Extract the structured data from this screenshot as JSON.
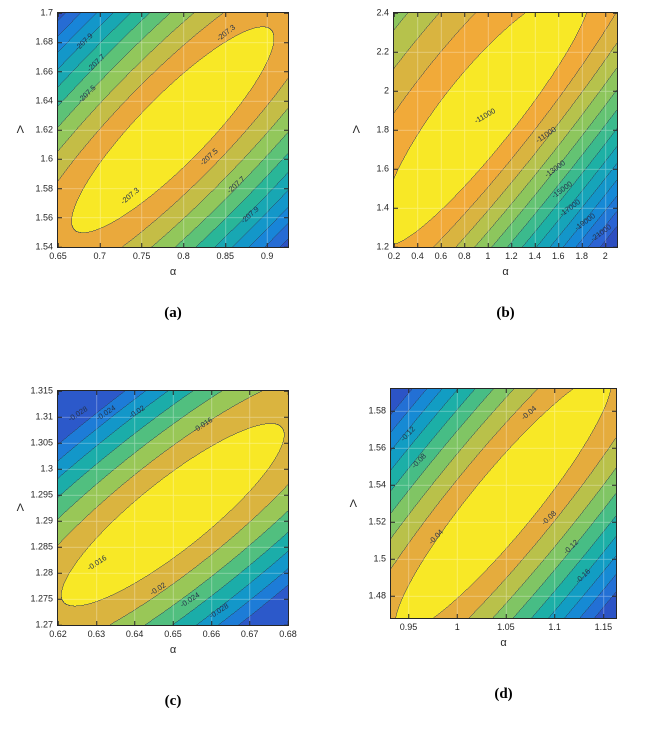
{
  "page": {
    "background": "#ffffff"
  },
  "colors": {
    "contour_line": "#2d3a54",
    "axis": "#262626",
    "colormap_low": "#2e3fb3",
    "colormap_high": "#f8e826"
  },
  "chart_data": [
    {
      "id": "a",
      "type": "contour",
      "caption": "(a)",
      "xlabel": "α",
      "ylabel": "Λ",
      "xlim": [
        0.65,
        0.925
      ],
      "ylim": [
        1.54,
        1.7
      ],
      "xticks": [
        0.65,
        0.7,
        0.75,
        0.8,
        0.85,
        0.9
      ],
      "yticks": [
        1.54,
        1.56,
        1.58,
        1.6,
        1.62,
        1.64,
        1.66,
        1.68,
        1.7
      ],
      "grid": true,
      "labeled_levels": [
        -207.3,
        -207.5,
        -207.7,
        -207.9
      ],
      "level_step": 0.2,
      "peak_region": "diagonal ellipse, max near -207.3 inside",
      "annotations": [
        {
          "text": "-207.3",
          "x": 0.73,
          "y": 0.085,
          "rot": -38
        },
        {
          "text": "-207.9",
          "x": 0.115,
          "y": 0.125,
          "rot": -44
        },
        {
          "text": "-207.7",
          "x": 0.165,
          "y": 0.215,
          "rot": -44
        },
        {
          "text": "-207.5",
          "x": 0.125,
          "y": 0.345,
          "rot": -44
        },
        {
          "text": "-207.3",
          "x": 0.315,
          "y": 0.78,
          "rot": -40
        },
        {
          "text": "-207.5",
          "x": 0.655,
          "y": 0.615,
          "rot": -42
        },
        {
          "text": "-207.7",
          "x": 0.775,
          "y": 0.735,
          "rot": -42
        },
        {
          "text": "-207.9",
          "x": 0.835,
          "y": 0.865,
          "rot": -42
        }
      ],
      "surface": {
        "angle_deg": 45,
        "cx": 0.5,
        "cy": 0.5,
        "ax": 1.15,
        "b_up": 0.28,
        "b_down": 0.28,
        "gmax": 2.6,
        "levels": 11,
        "power": 1.5
      }
    },
    {
      "id": "b",
      "type": "contour",
      "caption": "(b)",
      "xlabel": "α",
      "ylabel": "Λ",
      "xlim": [
        0.2,
        2.1
      ],
      "ylim": [
        1.2,
        2.4
      ],
      "xticks": [
        0.2,
        0.4,
        0.6,
        0.8,
        1,
        1.2,
        1.4,
        1.6,
        1.8,
        2
      ],
      "yticks": [
        1.2,
        1.4,
        1.6,
        1.8,
        2,
        2.2,
        2.4
      ],
      "grid": true,
      "labeled_levels": [
        -11000,
        -13000,
        -15000,
        -17000,
        -19000,
        -21000
      ],
      "level_step": 2000,
      "peak_region": "broad diagonal ellipse, max above -11000 inside",
      "annotations": [
        {
          "text": "-11000",
          "x": 0.41,
          "y": 0.44,
          "rot": -30
        },
        {
          "text": "-11000",
          "x": 0.68,
          "y": 0.52,
          "rot": -34
        },
        {
          "text": "-13000",
          "x": 0.72,
          "y": 0.665,
          "rot": -36
        },
        {
          "text": "-15000",
          "x": 0.755,
          "y": 0.755,
          "rot": -36
        },
        {
          "text": "-17000",
          "x": 0.79,
          "y": 0.835,
          "rot": -36
        },
        {
          "text": "-19000",
          "x": 0.855,
          "y": 0.895,
          "rot": -36
        },
        {
          "text": "-21000",
          "x": 0.93,
          "y": 0.94,
          "rot": -36
        }
      ],
      "surface": {
        "angle_deg": 50,
        "cx": 0.42,
        "cy": 0.55,
        "ax": 1.0,
        "b_up": 0.3,
        "b_down": 0.17,
        "gmax": 4.6,
        "levels": 14,
        "power": 1.4
      }
    },
    {
      "id": "c",
      "type": "contour",
      "caption": "(c)",
      "xlabel": "α",
      "ylabel": "Λ",
      "xlim": [
        0.62,
        0.68
      ],
      "ylim": [
        1.27,
        1.315
      ],
      "xticks": [
        0.62,
        0.63,
        0.64,
        0.65,
        0.66,
        0.67,
        0.68
      ],
      "yticks": [
        1.27,
        1.275,
        1.28,
        1.285,
        1.29,
        1.295,
        1.3,
        1.305,
        1.31,
        1.315
      ],
      "grid": true,
      "labeled_levels": [
        -0.016,
        -0.02,
        -0.024,
        -0.028
      ],
      "level_step": 0.004,
      "peak_region": "diagonal ellipse, max above -0.016 inside",
      "annotations": [
        {
          "text": "-0.028",
          "x": 0.085,
          "y": 0.1,
          "rot": -33
        },
        {
          "text": "-0.024",
          "x": 0.21,
          "y": 0.095,
          "rot": -33
        },
        {
          "text": "-0.02",
          "x": 0.345,
          "y": 0.09,
          "rot": -33
        },
        {
          "text": "-0.016",
          "x": 0.63,
          "y": 0.145,
          "rot": -33
        },
        {
          "text": "-0.016",
          "x": 0.17,
          "y": 0.735,
          "rot": -33
        },
        {
          "text": "-0.02",
          "x": 0.435,
          "y": 0.845,
          "rot": -33
        },
        {
          "text": "-0.024",
          "x": 0.575,
          "y": 0.895,
          "rot": -33
        },
        {
          "text": "-0.028",
          "x": 0.7,
          "y": 0.94,
          "rot": -33
        }
      ],
      "surface": {
        "angle_deg": 38,
        "cx": 0.5,
        "cy": 0.47,
        "ax": 1.05,
        "b_up": 0.26,
        "b_down": 0.26,
        "gmax": 2.3,
        "levels": 8,
        "power": 1.5
      }
    },
    {
      "id": "d",
      "type": "contour",
      "caption": "(d)",
      "xlabel": "α",
      "ylabel": "Λ",
      "xlim": [
        0.932,
        1.163
      ],
      "ylim": [
        1.468,
        1.592
      ],
      "xticks": [
        0.95,
        1,
        1.05,
        1.1,
        1.15
      ],
      "yticks": [
        1.48,
        1.5,
        1.52,
        1.54,
        1.56,
        1.58
      ],
      "grid": true,
      "labeled_levels": [
        -0.04,
        -0.08,
        -0.12,
        -0.16
      ],
      "level_step": 0.04,
      "peak_region": "narrow diagonal ellipse, max above -0.04 inside",
      "annotations": [
        {
          "text": "-0.04",
          "x": 0.615,
          "y": 0.105,
          "rot": -40
        },
        {
          "text": "-0.12",
          "x": 0.075,
          "y": 0.195,
          "rot": -46
        },
        {
          "text": "-0.08",
          "x": 0.125,
          "y": 0.315,
          "rot": -46
        },
        {
          "text": "-0.04",
          "x": 0.2,
          "y": 0.645,
          "rot": -46
        },
        {
          "text": "-0.08",
          "x": 0.7,
          "y": 0.565,
          "rot": -44
        },
        {
          "text": "-0.12",
          "x": 0.8,
          "y": 0.69,
          "rot": -44
        },
        {
          "text": "-0.16",
          "x": 0.855,
          "y": 0.815,
          "rot": -44
        }
      ],
      "surface": {
        "angle_deg": 50,
        "cx": 0.5,
        "cy": 0.5,
        "ax": 1.05,
        "b_up": 0.2,
        "b_down": 0.2,
        "gmax": 3.4,
        "levels": 10,
        "power": 1.45
      }
    }
  ]
}
